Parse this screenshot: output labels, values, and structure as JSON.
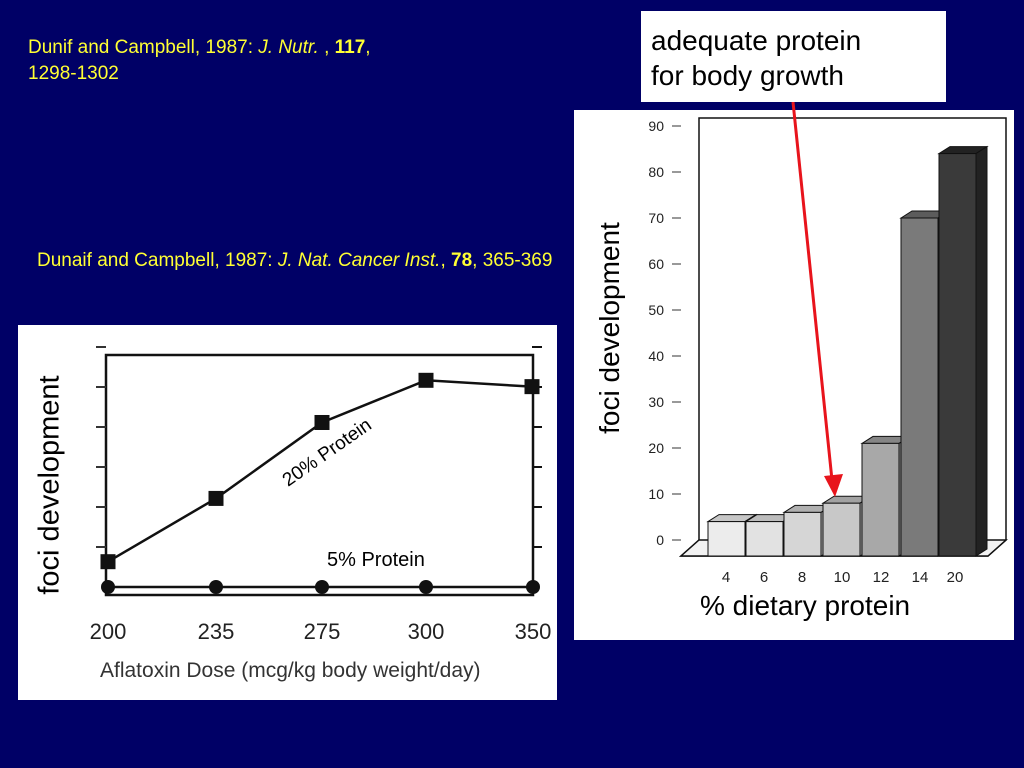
{
  "citations": {
    "first": {
      "prefix": "Dunif and Campbell, 1987: ",
      "journal": "J. Nutr.",
      "middle": " , ",
      "volume": "117",
      "after_volume": ",",
      "pages": "1298-1302"
    },
    "second": {
      "prefix": "Dunaif and Campbell, 1987: ",
      "journal": "J. Nat. Cancer Inst.",
      "middle": ", ",
      "volume": "78",
      "after_volume": ", 365-369"
    }
  },
  "callout": {
    "line1": "adequate protein",
    "line2": "for body growth"
  },
  "colors": {
    "background": "#000066",
    "citation_text": "#ffff33",
    "arrow": "#e8141c",
    "bar_light": "#e0e0e0",
    "bar_dark": "#2e2e2e"
  },
  "chart_data": [
    {
      "type": "line",
      "ylabel": "foci development",
      "xlabel": "Aflatoxin Dose (mcg/kg body weight/day)",
      "categories": [
        "200",
        "235",
        "275",
        "300",
        "350"
      ],
      "series": [
        {
          "name": "20% Protein",
          "values": [
            0.6,
            2.1,
            3.9,
            4.9,
            4.75
          ]
        },
        {
          "name": "5% Protein",
          "values": [
            0.0,
            0.0,
            0.0,
            0.0,
            0.0
          ]
        }
      ],
      "ylim": [
        0,
        5.5
      ],
      "grid": false
    },
    {
      "type": "bar",
      "ylabel": "foci development",
      "xlabel": "% dietary protein",
      "categories": [
        "4",
        "6",
        "8",
        "10",
        "12",
        "14",
        "20"
      ],
      "values": [
        4,
        4,
        6,
        8,
        21,
        70,
        84
      ],
      "yticks": [
        "0",
        "10",
        "20",
        "30",
        "40",
        "50",
        "60",
        "70",
        "80",
        "90"
      ],
      "ylim": [
        0,
        90
      ],
      "grid": false
    }
  ]
}
